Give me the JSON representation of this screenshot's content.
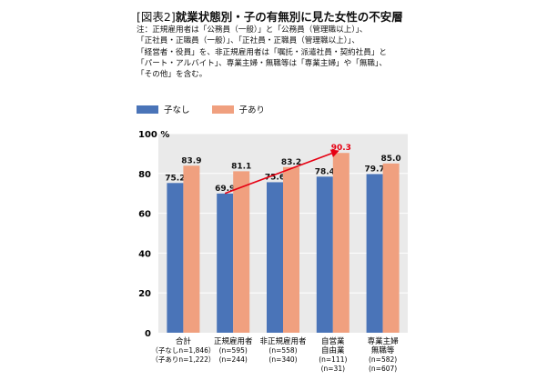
{
  "title_bracket": "[図表2]",
  "title_main": "就業状態別・子の有無別に見た女性の不安層",
  "note_lines": [
    "注：正規雇用者は「公務員（一般）」と「公務員（管理職以上）」、",
    "「正社員・正職員（一般）」、「正社員・正職員（管理職以上）」、",
    "「経営者・役員」を、非正規雇用者は「嘱託・派遣社員・契約社員」と",
    "「パート・アルバイト」、専業主婦・無職等は「専業主婦」や「無職」、",
    "「その他」を含む。"
  ],
  "chart_data": {
    "type": "bar",
    "categories": [
      {
        "name": [
          "合計"
        ],
        "n": [
          "（子なしn=1,846）",
          "（子ありn=1,222）"
        ]
      },
      {
        "name": [
          "正規雇用者"
        ],
        "n": [
          "(n=595)",
          "(n=244)"
        ]
      },
      {
        "name": [
          "非正規雇用者"
        ],
        "n": [
          "(n=558)",
          "(n=340)"
        ]
      },
      {
        "name": [
          "自営業",
          "自由業"
        ],
        "n": [
          "(n=111)",
          "(n=31)"
        ]
      },
      {
        "name": [
          "専業主婦",
          "無職等"
        ],
        "n": [
          "(n=582)",
          "(n=607)"
        ]
      }
    ],
    "series": [
      {
        "name": "子なし",
        "color": "#4a74b8",
        "values": [
          75.2,
          69.9,
          75.6,
          78.4,
          79.7
        ],
        "labels": [
          "75.2",
          "69.9",
          "75.6",
          "78.4",
          "79.7"
        ]
      },
      {
        "name": "子あり",
        "color": "#f0a07f",
        "values": [
          83.9,
          81.1,
          83.2,
          90.3,
          85.0
        ],
        "labels": [
          "83.9",
          "81.1",
          "83.2",
          "90.3",
          "85.0"
        ]
      }
    ],
    "highlight": {
      "category_index": 3,
      "series_index": 1,
      "color": "#e60012"
    },
    "arrow": {
      "from": {
        "category_index": 1,
        "value": 70
      },
      "to": {
        "category_index": 3,
        "value": 91.5
      },
      "color": "#e60012"
    },
    "y_unit": "%",
    "yticks": [
      0,
      20,
      40,
      60,
      80,
      100
    ],
    "ylim": [
      0,
      100
    ],
    "grid": true,
    "legend_position": "top-left",
    "plot_background": "#eaeaea",
    "gridline_color": "#ffffff"
  }
}
